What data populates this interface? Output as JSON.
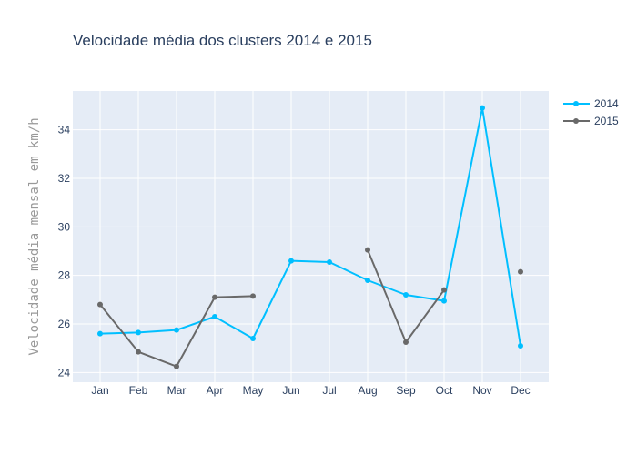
{
  "chart_data": {
    "type": "line",
    "title": "Velocidade média dos clusters 2014 e 2015",
    "xlabel": "",
    "ylabel": "Velocidade média mensal em km/h",
    "categories": [
      "Jan",
      "Feb",
      "Mar",
      "Apr",
      "May",
      "Jun",
      "Jul",
      "Aug",
      "Sep",
      "Oct",
      "Nov",
      "Dec"
    ],
    "ylim": [
      23.6,
      35.6
    ],
    "yticks": [
      24,
      26,
      28,
      30,
      32,
      34
    ],
    "grid": true,
    "legend_position": "top-right",
    "series": [
      {
        "name": "2014",
        "color": "#00bfff",
        "values": [
          25.6,
          25.65,
          25.75,
          26.3,
          25.4,
          28.6,
          28.55,
          27.8,
          27.2,
          26.95,
          34.9,
          25.1
        ]
      },
      {
        "name": "2015",
        "color": "#696969",
        "values": [
          26.8,
          24.85,
          24.25,
          27.1,
          27.15,
          null,
          null,
          29.05,
          25.25,
          27.4,
          null,
          28.15
        ]
      }
    ]
  }
}
